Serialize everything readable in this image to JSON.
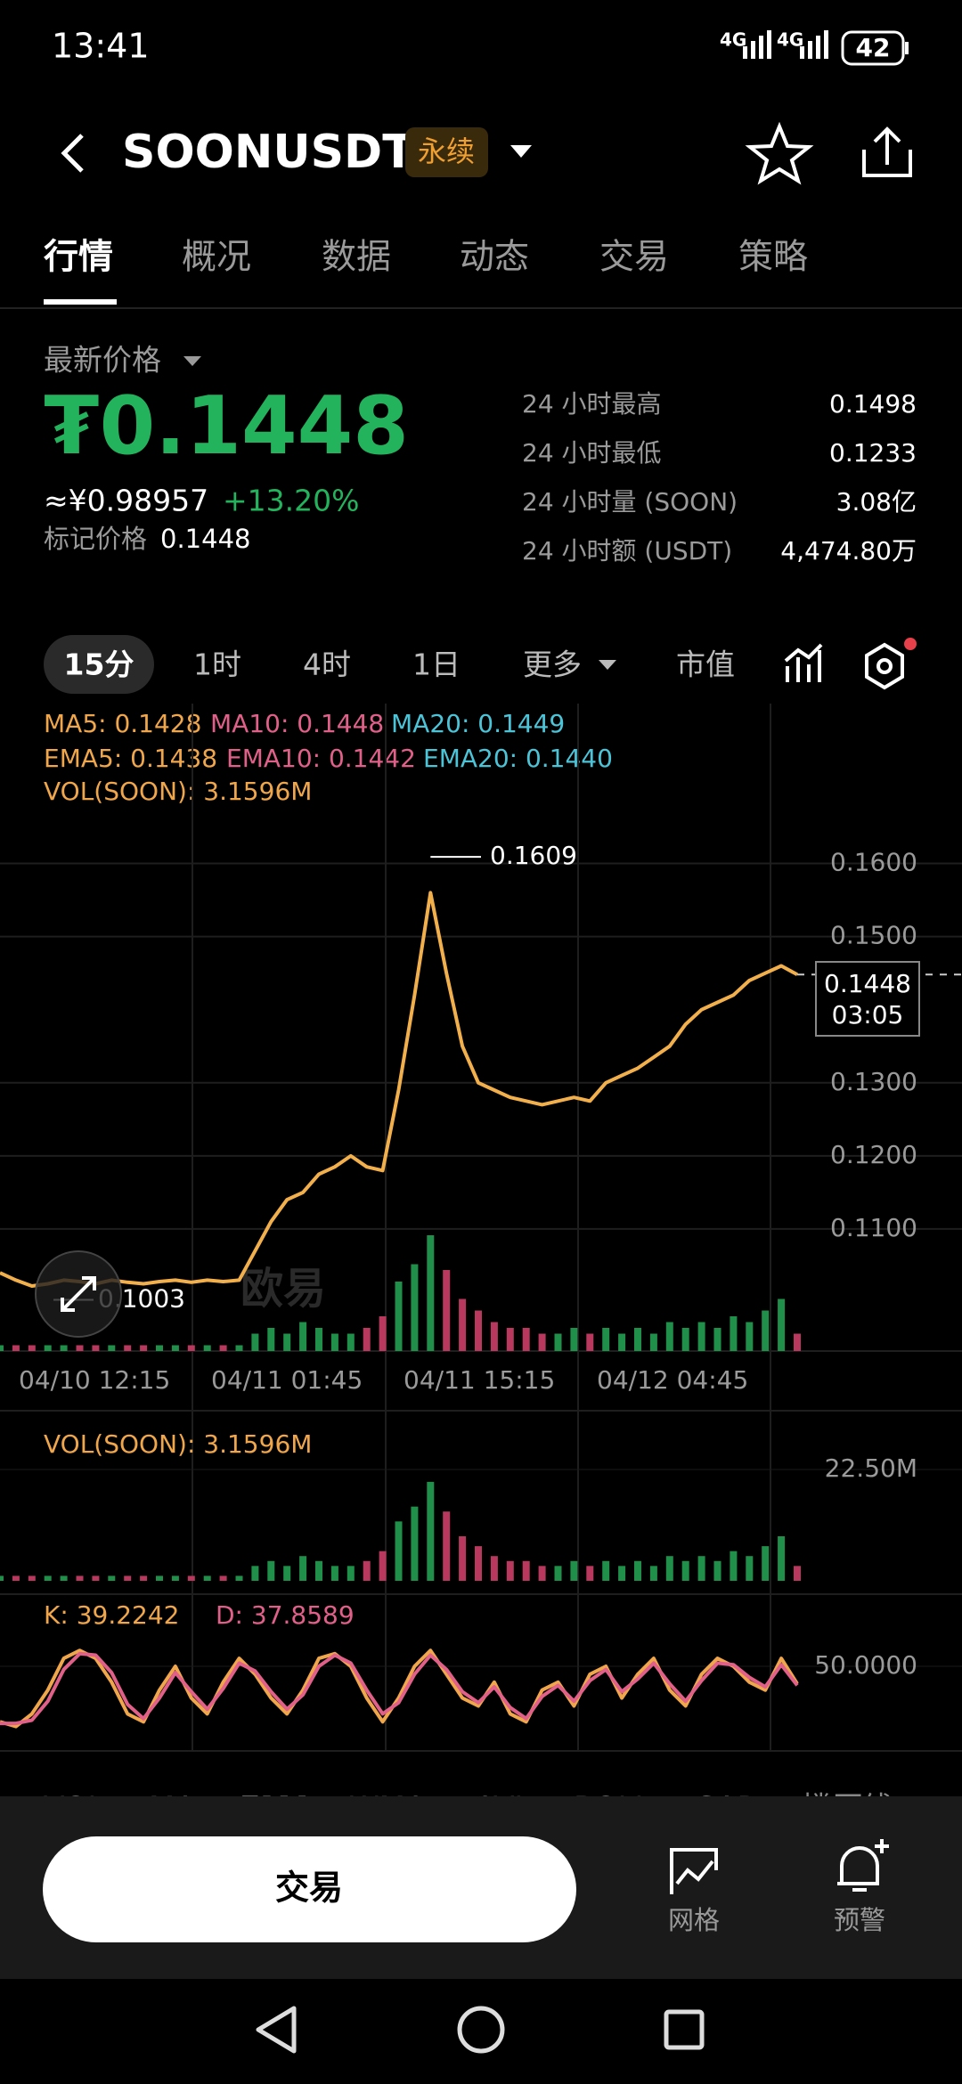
{
  "status_bar": {
    "time": "13:41",
    "network": [
      "4G",
      "4G"
    ],
    "battery": "42"
  },
  "header": {
    "symbol": "SOONUSDT",
    "badge": "永续"
  },
  "tabs": [
    "行情",
    "概况",
    "数据",
    "动态",
    "交易",
    "策略"
  ],
  "price_panel": {
    "label": "最新价格",
    "price": "₮0.1448",
    "cny": "≈¥0.98957",
    "change": "+13.20%",
    "mark_label": "标记价格",
    "mark_price": "0.1448",
    "stats": [
      {
        "label": "24 小时最高",
        "value": "0.1498"
      },
      {
        "label": "24 小时最低",
        "value": "0.1233"
      },
      {
        "label": "24 小时量 (SOON)",
        "value": "3.08亿"
      },
      {
        "label": "24 小时额 (USDT)",
        "value": "4,474.80万"
      }
    ]
  },
  "intervals": [
    "15分",
    "1时",
    "4时",
    "1日",
    "更多",
    "市值"
  ],
  "indicators": {
    "ma": [
      "MA5: 0.1428",
      "MA10: 0.1448",
      "MA20: 0.1449"
    ],
    "ema": [
      "EMA5: 0.1438",
      "EMA10: 0.1442",
      "EMA20: 0.1440"
    ]
  },
  "chart_data": [
    {
      "type": "line",
      "color": "#f2b04c",
      "x_labels": [
        "04/10 12:15",
        "04/11 01:45",
        "04/11 15:15",
        "04/12 04:45"
      ],
      "values": [
        0.104,
        0.103,
        0.1022,
        0.1025,
        0.103,
        0.1028,
        0.1025,
        0.103,
        0.1027,
        0.1025,
        0.1028,
        0.103,
        0.1027,
        0.103,
        0.1028,
        0.103,
        0.107,
        0.111,
        0.114,
        0.115,
        0.1175,
        0.1185,
        0.12,
        0.1185,
        0.118,
        0.129,
        0.142,
        0.156,
        0.145,
        0.135,
        0.13,
        0.129,
        0.128,
        0.1275,
        0.127,
        0.1275,
        0.128,
        0.1275,
        0.13,
        0.131,
        0.132,
        0.1335,
        0.135,
        0.138,
        0.14,
        0.141,
        0.142,
        0.144,
        0.145,
        0.146,
        0.1448
      ],
      "ylim": [
        0.0933,
        0.1636
      ],
      "yticks": [
        {
          "value": 0.16,
          "label": "0.1600"
        },
        {
          "value": 0.15,
          "label": "0.1500"
        },
        {
          "value": 0.13,
          "label": "0.1300"
        },
        {
          "value": 0.12,
          "label": "0.1200"
        },
        {
          "value": 0.11,
          "label": "0.1100"
        }
      ],
      "high": 0.1609,
      "low": 0.1003,
      "last": 0.1448,
      "countdown": "03:05",
      "watermark": "欧易"
    },
    {
      "type": "bar",
      "title": "VOL(SOON): 3.1596M",
      "values": [
        1,
        1,
        1,
        1,
        1,
        1,
        1,
        1,
        1,
        1,
        1,
        1,
        1,
        1,
        1,
        1,
        3,
        4,
        3,
        5,
        4,
        3,
        3,
        4,
        6,
        12,
        15,
        20,
        14,
        9,
        7,
        5,
        4,
        4,
        3,
        3,
        4,
        3,
        4,
        3,
        4,
        3,
        5,
        4,
        5,
        4,
        6,
        5,
        7,
        9,
        3
      ],
      "ylim": [
        0,
        22.5
      ],
      "yticks": [
        {
          "value": 22.5,
          "label": "22.50M"
        }
      ]
    },
    {
      "type": "line",
      "series": [
        {
          "name": "K: 39.2242",
          "color": "#f0a64a",
          "values": [
            15,
            12,
            20,
            35,
            55,
            60,
            55,
            40,
            20,
            15,
            35,
            50,
            30,
            20,
            40,
            55,
            45,
            30,
            20,
            35,
            55,
            58,
            50,
            30,
            15,
            30,
            50,
            60,
            45,
            30,
            25,
            40,
            20,
            15,
            35,
            40,
            25,
            45,
            50,
            30,
            45,
            55,
            35,
            25,
            45,
            55,
            50,
            40,
            35,
            55,
            39
          ]
        },
        {
          "name": "D: 37.8589",
          "color": "#e0608a",
          "values": [
            14,
            14,
            16,
            28,
            48,
            58,
            57,
            46,
            26,
            17,
            30,
            46,
            34,
            23,
            36,
            52,
            47,
            34,
            23,
            32,
            50,
            57,
            52,
            35,
            20,
            27,
            45,
            57,
            48,
            34,
            27,
            37,
            24,
            17,
            31,
            38,
            28,
            41,
            48,
            34,
            42,
            52,
            39,
            28,
            41,
            52,
            51,
            43,
            37,
            51,
            38
          ]
        }
      ],
      "ylim": [
        0,
        100
      ],
      "yticks": [
        {
          "value": 50,
          "label": "50.0000"
        }
      ]
    }
  ],
  "indicator_tabs": [
    "VOL",
    "MA",
    "EMA",
    "WMA",
    "AVL",
    "BOLL",
    "SAR",
    "撑压线"
  ],
  "bottom_bar": {
    "trade": "交易",
    "grid": "网格",
    "alert": "预警"
  }
}
